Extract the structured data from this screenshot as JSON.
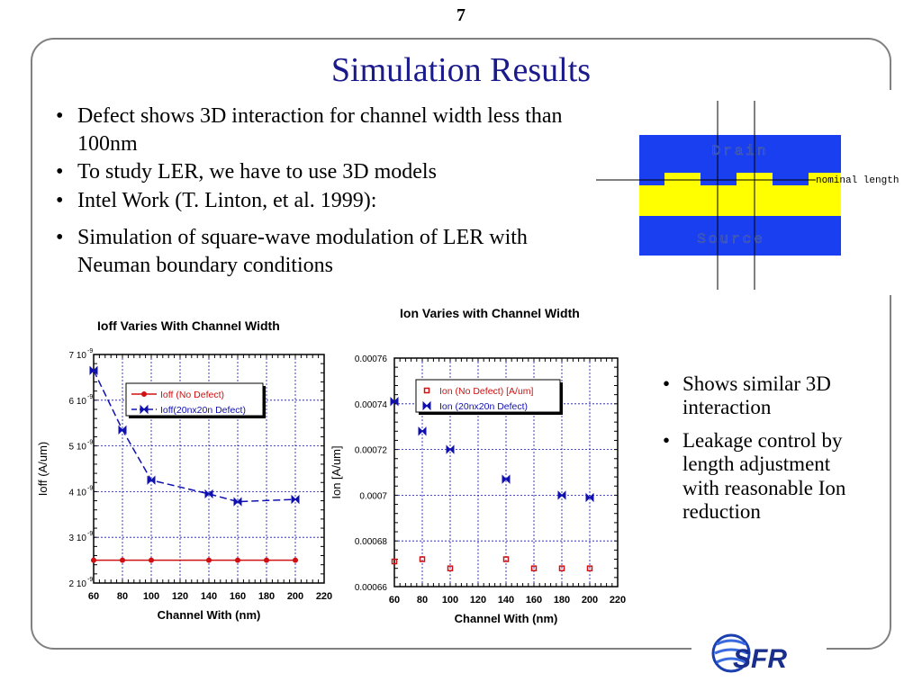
{
  "slide_number": "7",
  "title": "Simulation Results",
  "bullets": [
    "Defect shows 3D interaction for channel width less than 100nm",
    "To study LER, we have to use 3D models",
    "Intel Work (T. Linton, et al. 1999):",
    "Simulation of square-wave modulation of LER with Neuman boundary conditions"
  ],
  "right_bullets": [
    "Shows similar 3D interaction",
    "Leakage control by length adjustment with reasonable Ion reduction"
  ],
  "diagram": {
    "drain_label": "Drain",
    "source_label": "Source",
    "nominal_label": "nominal length",
    "colors": {
      "region": "#1a3ff0",
      "channel": "#ffff00"
    }
  },
  "logo_text": "SFR",
  "chart_data": [
    {
      "type": "line",
      "title": "Ioff Varies With Channel Width",
      "xlabel": "Channel With (nm)",
      "ylabel": "Ioff (A/um)",
      "x_ticks": [
        "60",
        "80",
        "100",
        "120",
        "140",
        "160",
        "180",
        "200",
        "220"
      ],
      "y_ticks": [
        "2 10",
        "3 10",
        "4 10",
        "5 10",
        "6 10",
        "7 10"
      ],
      "y_tick_exponent": "-9",
      "xlim": [
        60,
        220
      ],
      "ylim": [
        2,
        7
      ],
      "grid": true,
      "legend_position": "top-right",
      "series": [
        {
          "name": "Ioff (No Defect)",
          "color": "#d01010",
          "marker": "circle",
          "x": [
            60,
            80,
            100,
            140,
            160,
            180,
            200
          ],
          "y": [
            2.5,
            2.5,
            2.5,
            2.5,
            2.5,
            2.5,
            2.5
          ]
        },
        {
          "name": "Ioff(20nx20n  Defect)",
          "color": "#1010b0",
          "marker": "bowtie",
          "dashed": true,
          "x": [
            60,
            80,
            100,
            140,
            160,
            200
          ],
          "y": [
            6.65,
            5.35,
            4.25,
            3.95,
            3.78,
            3.83
          ]
        }
      ]
    },
    {
      "type": "scatter",
      "title": "Ion Varies with Channel Width",
      "xlabel": "Channel With (nm)",
      "ylabel": "Ion  [A/um]",
      "x_ticks": [
        "60",
        "80",
        "100",
        "120",
        "140",
        "160",
        "180",
        "200",
        "220"
      ],
      "y_ticks": [
        "0.00066",
        "0.00068",
        "0.0007",
        "0.00072",
        "0.00074",
        "0.00076"
      ],
      "xlim": [
        60,
        220
      ],
      "ylim": [
        0.00066,
        0.00076
      ],
      "grid": true,
      "legend_position": "top-right",
      "series": [
        {
          "name": "Ion  (No Defect) [A/um]",
          "color": "#d01010",
          "marker": "square",
          "x": [
            60,
            80,
            100,
            140,
            160,
            180,
            200
          ],
          "y": [
            0.000671,
            0.000672,
            0.000668,
            0.000672,
            0.000668,
            0.000668,
            0.000668
          ]
        },
        {
          "name": "Ion (20nx20n  Defect)",
          "color": "#1010b0",
          "marker": "bowtie",
          "x": [
            60,
            80,
            100,
            140,
            180,
            200
          ],
          "y": [
            0.000741,
            0.000728,
            0.00072,
            0.000707,
            0.0007,
            0.000699
          ]
        }
      ]
    }
  ]
}
